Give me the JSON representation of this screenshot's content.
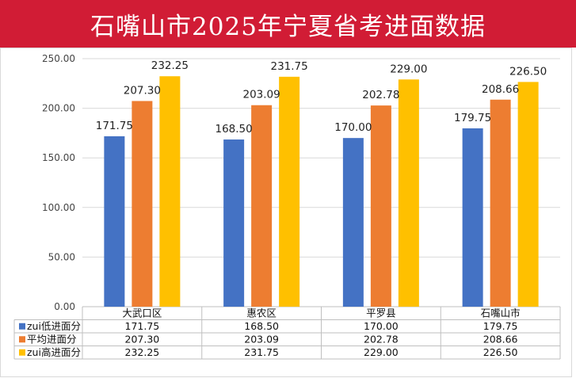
{
  "title": "石嘴山市2025年宁夏省考进面数据",
  "colors": {
    "banner": "#d11c35"
  },
  "chart_data": {
    "type": "bar",
    "categories": [
      "大武口区",
      "惠农区",
      "平罗县",
      "石嘴山市"
    ],
    "series": [
      {
        "name": "zui低进面分",
        "color": "#4472c4",
        "values": [
          171.75,
          168.5,
          170.0,
          179.75
        ]
      },
      {
        "name": "平均进面分",
        "color": "#ed7d31",
        "values": [
          207.3,
          203.09,
          202.78,
          208.66
        ]
      },
      {
        "name": "zui高进面分",
        "color": "#ffc000",
        "values": [
          232.25,
          231.75,
          229.0,
          226.5
        ]
      }
    ],
    "yticks": [
      "0.00",
      "50.00",
      "100.00",
      "150.00",
      "200.00",
      "250.00"
    ],
    "ylim": [
      0,
      250
    ],
    "grid": true,
    "legend": "data-table",
    "table_values": [
      [
        "171.75",
        "168.50",
        "170.00",
        "179.75"
      ],
      [
        "207.30",
        "203.09",
        "202.78",
        "208.66"
      ],
      [
        "232.25",
        "231.75",
        "229.00",
        "226.50"
      ]
    ]
  }
}
